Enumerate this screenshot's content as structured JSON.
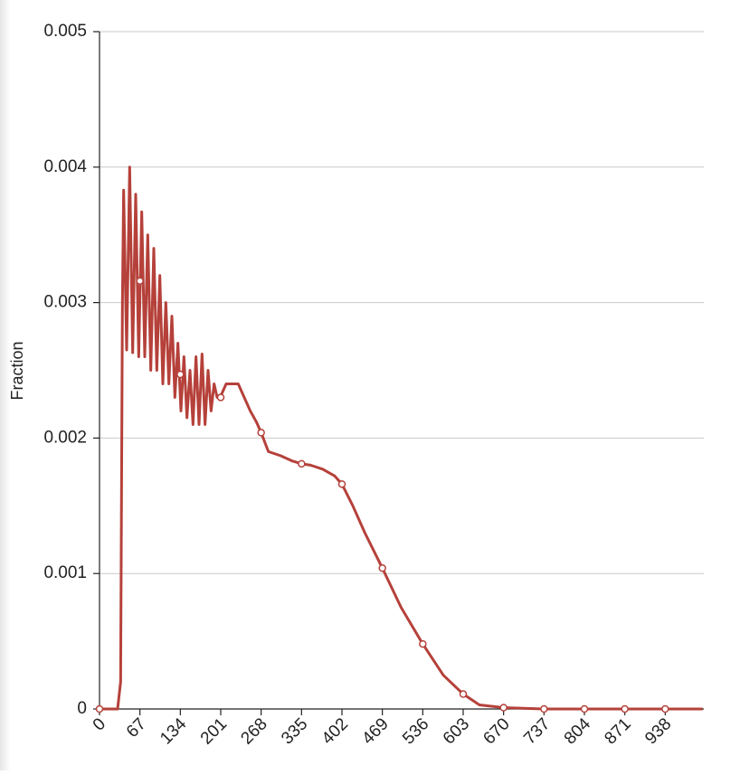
{
  "chart_data": {
    "type": "line",
    "y_label": "Fraction",
    "xlim": [
      0,
      1002
    ],
    "ylim": [
      0,
      0.005
    ],
    "xticks": [
      0,
      67,
      134,
      201,
      268,
      335,
      402,
      469,
      536,
      603,
      670,
      737,
      804,
      871,
      938
    ],
    "yticks": [
      0,
      0.001,
      0.002,
      0.003,
      0.004,
      0.005
    ],
    "grid": true,
    "series": [
      {
        "color": "#b5413a",
        "x": [
          0,
          30,
          35,
          38,
          40,
          45,
          50,
          55,
          60,
          65,
          70,
          75,
          80,
          85,
          90,
          95,
          100,
          105,
          110,
          115,
          120,
          125,
          130,
          135,
          140,
          145,
          150,
          155,
          160,
          165,
          170,
          175,
          180,
          185,
          190,
          195,
          200,
          210,
          220,
          230,
          240,
          250,
          260,
          268,
          280,
          300,
          320,
          335,
          350,
          370,
          390,
          402,
          420,
          440,
          469,
          500,
          536,
          570,
          603,
          630,
          670,
          737,
          804,
          871,
          938,
          1000
        ],
        "values": [
          0,
          0,
          0.0002,
          0.003,
          0.00383,
          0.00265,
          0.004,
          0.00263,
          0.0038,
          0.0026,
          0.00367,
          0.0026,
          0.0035,
          0.0025,
          0.0034,
          0.0025,
          0.0032,
          0.0024,
          0.003,
          0.0024,
          0.0029,
          0.0023,
          0.0027,
          0.0022,
          0.0026,
          0.00215,
          0.0025,
          0.0021,
          0.0026,
          0.0021,
          0.00262,
          0.0021,
          0.0025,
          0.0022,
          0.0024,
          0.0023,
          0.0023,
          0.0024,
          0.0024,
          0.0024,
          0.0023,
          0.0022,
          0.00212,
          0.00204,
          0.0019,
          0.00187,
          0.00183,
          0.00181,
          0.0018,
          0.00177,
          0.00172,
          0.00166,
          0.0015,
          0.0013,
          0.00104,
          0.00075,
          0.00048,
          0.00025,
          0.00011,
          3e-05,
          1e-05,
          0,
          0,
          0,
          0,
          0
        ]
      }
    ],
    "points": {
      "x": [
        0,
        67,
        134,
        201,
        268,
        335,
        402,
        469,
        536,
        603,
        670,
        737,
        804,
        871,
        938
      ],
      "values": [
        0,
        0.00316,
        0.00247,
        0.0023,
        0.00204,
        0.00181,
        0.00166,
        0.00104,
        0.00048,
        0.00011,
        1e-05,
        0,
        0,
        0,
        0
      ]
    }
  }
}
